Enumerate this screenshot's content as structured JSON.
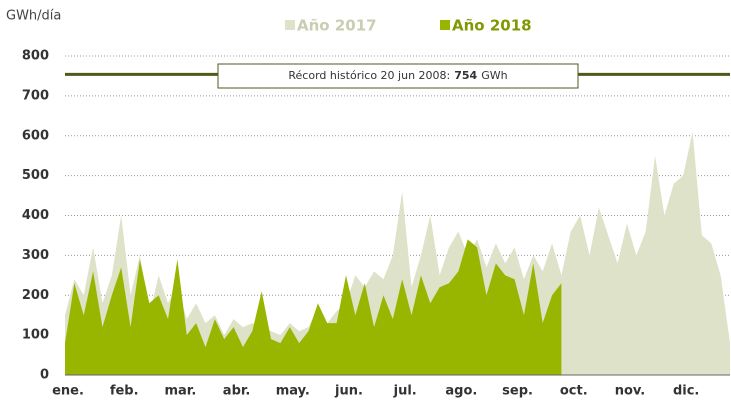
{
  "chart_data": {
    "type": "area",
    "y_label": "GWh/día",
    "categories": [
      "ene.",
      null,
      null,
      null,
      null,
      null,
      "feb.",
      null,
      null,
      null,
      null,
      null,
      "mar.",
      null,
      null,
      null,
      null,
      null,
      "abr.",
      null,
      null,
      null,
      null,
      null,
      "may.",
      null,
      null,
      null,
      null,
      null,
      "jun.",
      null,
      null,
      null,
      null,
      null,
      "jul.",
      null,
      null,
      null,
      null,
      null,
      "ago.",
      null,
      null,
      null,
      null,
      null,
      "sep.",
      null,
      null,
      null,
      null,
      null,
      "oct.",
      null,
      null,
      null,
      null,
      null,
      "nov.",
      null,
      null,
      null,
      null,
      null,
      "dic.",
      null,
      null,
      null,
      null,
      null
    ],
    "series": [
      {
        "name": "Año 2017",
        "color": "#dde2c8",
        "values": [
          150,
          240,
          200,
          320,
          180,
          250,
          400,
          200,
          300,
          150,
          250,
          180,
          220,
          140,
          180,
          130,
          150,
          100,
          140,
          120,
          130,
          120,
          110,
          100,
          130,
          110,
          120,
          170,
          130,
          160,
          180,
          250,
          220,
          260,
          240,
          300,
          460,
          220,
          300,
          400,
          250,
          320,
          360,
          300,
          340,
          270,
          330,
          280,
          320,
          240,
          300,
          260,
          330,
          250,
          360,
          400,
          300,
          420,
          350,
          280,
          380,
          300,
          360,
          550,
          400,
          480,
          500,
          610,
          350,
          330,
          250,
          80
        ]
      },
      {
        "name": "Año 2018",
        "color": "#98b600",
        "values": [
          80,
          230,
          150,
          260,
          120,
          200,
          270,
          120,
          290,
          180,
          200,
          140,
          290,
          100,
          130,
          70,
          140,
          90,
          120,
          70,
          110,
          210,
          90,
          80,
          120,
          80,
          110,
          180,
          130,
          130,
          250,
          150,
          230,
          120,
          200,
          140,
          240,
          150,
          250,
          180,
          220,
          230,
          260,
          340,
          320,
          200,
          280,
          250,
          240,
          150,
          280,
          130,
          200,
          230,
          null,
          null,
          null,
          null,
          null,
          null,
          null,
          null,
          null,
          null,
          null,
          null,
          null,
          null,
          null,
          null,
          null,
          null
        ]
      }
    ],
    "record": {
      "label": "Récord histórico 20 jun 2008:",
      "value": 754,
      "unit": "GWh",
      "color": "#4d5a1c"
    },
    "ylim": [
      0,
      800
    ],
    "yticks": [
      0,
      100,
      200,
      300,
      400,
      500,
      600,
      700,
      800
    ],
    "grid": true
  }
}
